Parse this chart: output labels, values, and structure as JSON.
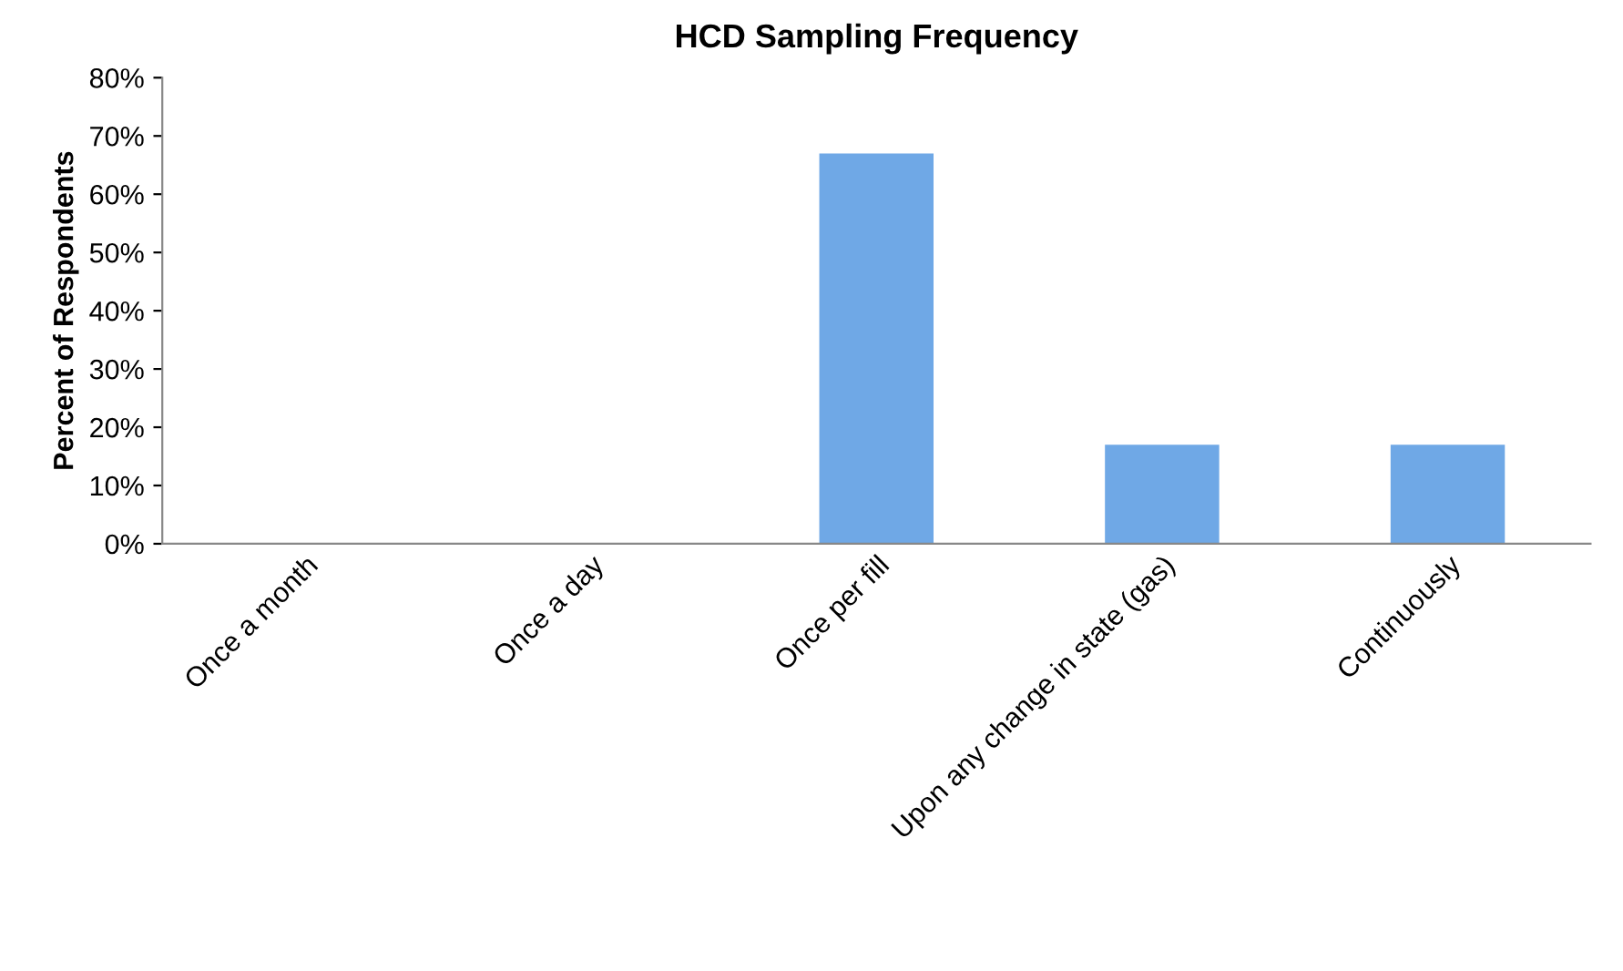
{
  "chart_data": {
    "type": "bar",
    "title": "HCD Sampling Frequency",
    "ylabel": "Percent of Respondents",
    "categories": [
      "Once a month",
      "Once a day",
      "Once per fill",
      "Upon any change in state (gas)",
      "Continuously"
    ],
    "values": [
      0,
      0,
      67,
      17,
      17
    ],
    "color": "#6fa8e6",
    "ylim": [
      0,
      80
    ],
    "yticks": [
      {
        "value": 0,
        "label": "0%"
      },
      {
        "value": 10,
        "label": "10%"
      },
      {
        "value": 20,
        "label": "20%"
      },
      {
        "value": 30,
        "label": "30%"
      },
      {
        "value": 40,
        "label": "40%"
      },
      {
        "value": 50,
        "label": "50%"
      },
      {
        "value": 60,
        "label": "60%"
      },
      {
        "value": 70,
        "label": "70%"
      },
      {
        "value": 80,
        "label": "80%"
      }
    ],
    "grid": false,
    "legend": false
  }
}
